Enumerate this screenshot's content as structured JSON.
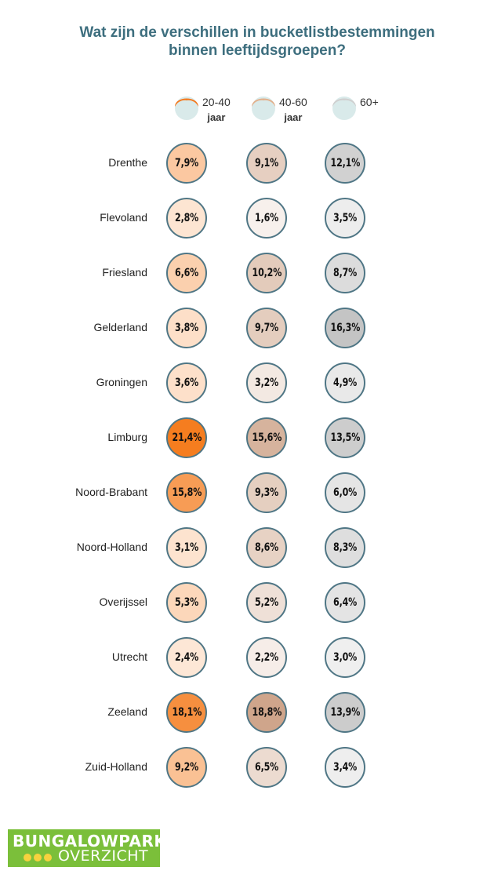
{
  "chart_data": {
    "type": "table",
    "title_lines": [
      "Wat zijn de verschillen in bucketlistbestemmingen",
      "binnen leeftijdsgroepen?"
    ],
    "series": [
      {
        "name_line1": "20-40",
        "name_line2": "jaar",
        "hair_color": "#f47a20",
        "bubble_color": "#f57d1f",
        "values": [
          7.9,
          2.8,
          6.6,
          3.8,
          3.6,
          21.4,
          15.8,
          3.1,
          5.3,
          2.4,
          18.1,
          9.2
        ],
        "labels": [
          "7,9%",
          "2,8%",
          "6,6%",
          "3,8%",
          "3,6%",
          "21,4%",
          "15,8%",
          "3,1%",
          "5,3%",
          "2,4%",
          "18,1%",
          "9,2%"
        ]
      },
      {
        "name_line1": "40-60",
        "name_line2": "jaar",
        "hair_color": "#e2b08c",
        "bubble_color": "#c99a7c",
        "values": [
          9.1,
          1.6,
          10.2,
          9.7,
          3.2,
          15.6,
          9.3,
          8.6,
          5.2,
          2.2,
          18.8,
          6.5
        ],
        "labels": [
          "9,1%",
          "1,6%",
          "10,2%",
          "9,7%",
          "3,2%",
          "15,6%",
          "9,3%",
          "8,6%",
          "5,2%",
          "2,2%",
          "18,8%",
          "6,5%"
        ]
      },
      {
        "name_line1": "60+",
        "name_line2": "",
        "hair_color": "#cfcfcf",
        "bubble_color": "#b3b3b3",
        "values": [
          12.1,
          3.5,
          8.7,
          16.3,
          4.9,
          13.5,
          6.0,
          8.3,
          6.4,
          3.0,
          13.9,
          3.4
        ],
        "labels": [
          "12,1%",
          "3,5%",
          "8,7%",
          "16,3%",
          "4,9%",
          "13,5%",
          "6,0%",
          "8,3%",
          "6,4%",
          "3,0%",
          "13,9%",
          "3,4%"
        ]
      }
    ],
    "categories": [
      "Drenthe",
      "Flevoland",
      "Friesland",
      "Gelderland",
      "Groningen",
      "Limburg",
      "Noord-Brabant",
      "Noord-Holland",
      "Overijssel",
      "Utrecht",
      "Zeeland",
      "Zuid-Holland"
    ],
    "value_max": 21.4,
    "face_color": "#d9eaea",
    "bubble_border_color": "#4f7685"
  },
  "logo": {
    "line1": "BUNGALOWPARK",
    "line2": "OVERZICHT",
    "bg_color": "#7bbf3a",
    "dot_color": "#f7d23e"
  }
}
